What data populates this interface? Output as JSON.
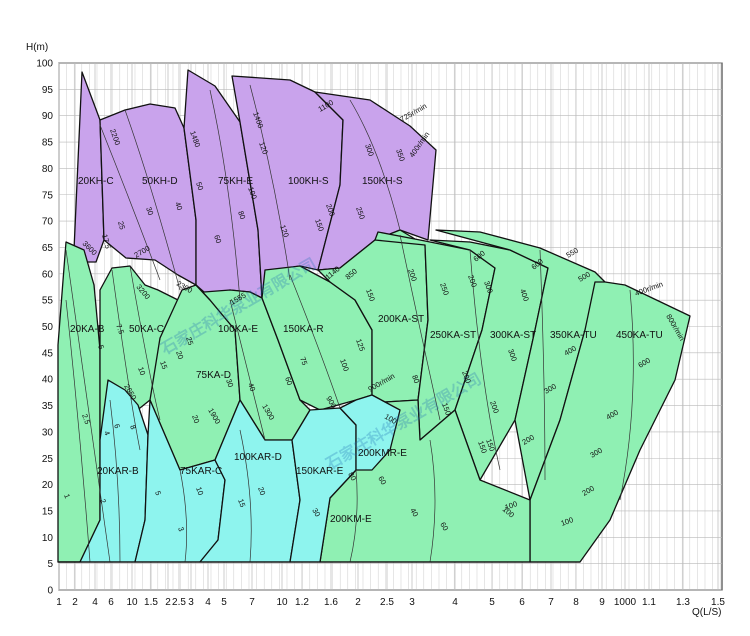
{
  "chart_data": {
    "type": "pump-performance-range",
    "title": "",
    "ylabel": "H(m)",
    "xlabel": "Q(L/S)",
    "ylim": [
      0,
      100
    ],
    "yticks": [
      100,
      95,
      90,
      85,
      80,
      75,
      70,
      65,
      60,
      55,
      50,
      45,
      40,
      35,
      30,
      25,
      20,
      15,
      10,
      5,
      0
    ],
    "xticks": [
      "1",
      "2",
      "4",
      "6",
      "10",
      "1.5",
      "2",
      "2.5",
      "3",
      "4",
      "5",
      "7",
      "10",
      "1.2",
      "1.6",
      "2",
      "2.5",
      "3",
      "4",
      "5",
      "6",
      "7",
      "8",
      "9",
      "1000",
      "1.1",
      "1.3",
      "1.5"
    ],
    "colors": {
      "kh": "#c9a3ec",
      "ka": "#8ff0b3",
      "kar": "#8ef4ee",
      "grid": "#b9b9b9"
    },
    "regions": [
      {
        "model": "20KH-C",
        "group": "kh",
        "curve_labels": [
          "2200",
          "25",
          "17.5"
        ]
      },
      {
        "model": "50KH-D",
        "group": "kh",
        "curve_labels": [
          "30",
          "40",
          "2700"
        ]
      },
      {
        "model": "75KH-E",
        "group": "kh",
        "curve_labels": [
          "1480",
          "50",
          "60",
          "2300"
        ]
      },
      {
        "model": "100KH-S",
        "group": "kh",
        "curve_labels": [
          "1400",
          "120",
          "100",
          "80",
          "1555"
        ]
      },
      {
        "model": "150KH-S",
        "group": "kh",
        "curve_labels": [
          "1100",
          "300",
          "350",
          "200",
          "150",
          "120",
          "250"
        ]
      },
      {
        "model": "20KA-B",
        "group": "ka",
        "curve_labels": [
          "3600",
          "5",
          "2.5",
          "1"
        ]
      },
      {
        "model": "50KA-C",
        "group": "ka",
        "curve_labels": [
          "3200",
          "7.5",
          "10",
          "15",
          "20"
        ]
      },
      {
        "model": "75KA-D",
        "group": "ka",
        "curve_labels": [
          "25",
          "30",
          "1900",
          "20"
        ]
      },
      {
        "model": "100KA-E",
        "group": "ka",
        "curve_labels": [
          "40",
          "1300",
          "60"
        ]
      },
      {
        "model": "150KA-R",
        "group": "ka",
        "curve_labels": [
          "1140",
          "75",
          "100",
          "125",
          "900"
        ]
      },
      {
        "model": "200KA-ST",
        "group": "ka",
        "curve_labels": [
          "850",
          "150",
          "200",
          "900r/min"
        ]
      },
      {
        "model": "250KA-ST",
        "group": "ka",
        "curve_labels": [
          "200",
          "250",
          "150"
        ]
      },
      {
        "model": "300KA-ST",
        "group": "ka",
        "curve_labels": [
          "600",
          "300",
          "200",
          "150"
        ]
      },
      {
        "model": "350KA-TU",
        "group": "ka",
        "curve_labels": [
          "600",
          "400",
          "300",
          "200",
          "150",
          "100"
        ]
      },
      {
        "model": "450KA-TU",
        "group": "ka",
        "curve_labels": [
          "550",
          "500",
          "400",
          "300",
          "200",
          "100"
        ]
      },
      {
        "model": "20KAR-B",
        "group": "kar",
        "curve_labels": [
          "2650",
          "8",
          "6",
          "4",
          "2"
        ]
      },
      {
        "model": "75KAR-C",
        "group": "kar",
        "curve_labels": [
          "5",
          "10",
          "15",
          "20"
        ]
      },
      {
        "model": "100KAR-D",
        "group": "kar",
        "curve_labels": [
          "20",
          "30"
        ]
      },
      {
        "model": "150KAR-E",
        "group": "kar",
        "curve_labels": [
          "80"
        ]
      },
      {
        "model": "200KMR-E",
        "group": "kar",
        "curve_labels": [
          "100",
          "80",
          "60"
        ]
      },
      {
        "model": "200KM-E",
        "group": "ka",
        "curve_labels": [
          "60",
          "40"
        ]
      }
    ],
    "speed_labels": [
      "725r/min",
      "400r/min",
      "400r/min",
      "800r/min"
    ],
    "watermark": "石家庄科华泵业有限公司"
  }
}
